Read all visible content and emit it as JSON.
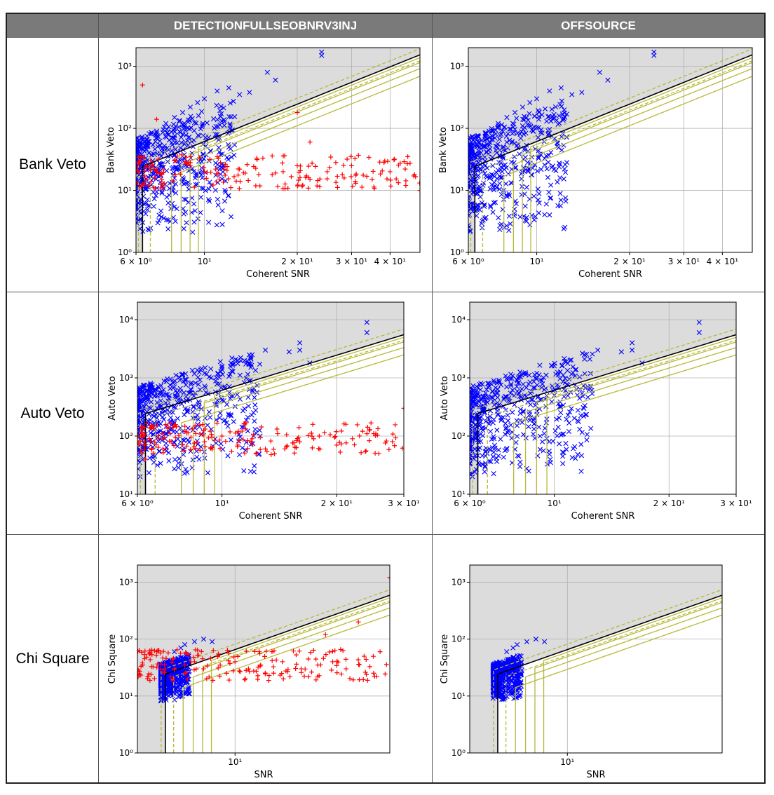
{
  "columns": [
    "DETECTIONFULLSEOBNRV3INJ",
    "OFFSOURCE"
  ],
  "rows": [
    "Bank Veto",
    "Auto Veto",
    "Chi Square"
  ],
  "colors": {
    "background_region": "#dcdcdc",
    "signal_marker": "#ff0000",
    "background_marker": "#0000ff",
    "threshold_solid": "#000000",
    "threshold_lines": "#b8b83a",
    "header_fill": "#7a7a7a"
  },
  "chart_data": [
    {
      "type": "scatter",
      "row": "Bank Veto",
      "column": "DETECTIONFULLSEOBNRV3INJ",
      "xlabel": "Coherent SNR",
      "ylabel": "Bank Veto",
      "xscale": "log",
      "yscale": "log",
      "xlim": [
        6,
        50
      ],
      "ylim": [
        1,
        2000
      ],
      "xticks": [
        "6 × 10⁰",
        "10¹",
        "2 × 10¹",
        "3 × 10¹",
        "4 × 10¹"
      ],
      "xtick_values": [
        6,
        10,
        20,
        30,
        40
      ],
      "yticks": [
        "10⁰",
        "10¹",
        "10²",
        "10³"
      ],
      "ytick_values": [
        1,
        10,
        100,
        1000
      ],
      "grid": true,
      "show_injections": true,
      "series": [
        {
          "kind": "background",
          "marker": "x",
          "points": [
            [
              6.2,
              40
            ],
            [
              6.5,
              60
            ],
            [
              7,
              90
            ],
            [
              7.5,
              120
            ],
            [
              8,
              150
            ],
            [
              9,
              220
            ],
            [
              10,
              300
            ],
            [
              11,
              400
            ],
            [
              12,
              450
            ],
            [
              9.5,
              260
            ],
            [
              8.5,
              180
            ],
            [
              13,
              350
            ],
            [
              14,
              380
            ],
            [
              16,
              800
            ],
            [
              17,
              600
            ],
            [
              24,
              1700
            ],
            [
              24,
              1500
            ],
            [
              6.1,
              5
            ],
            [
              6.3,
              15
            ],
            [
              6.8,
              30
            ],
            [
              7.2,
              25
            ]
          ]
        },
        {
          "kind": "injection",
          "marker": "+",
          "points": [
            [
              6.2,
              30
            ],
            [
              6.5,
              25
            ],
            [
              7,
              20
            ],
            [
              8,
              30
            ],
            [
              9,
              25
            ],
            [
              10,
              20
            ],
            [
              11,
              35
            ],
            [
              13,
              22
            ],
            [
              15,
              18
            ],
            [
              18,
              20
            ],
            [
              20,
              25
            ],
            [
              22,
              15
            ],
            [
              25,
              20
            ],
            [
              28,
              18
            ],
            [
              30,
              25
            ],
            [
              35,
              15
            ],
            [
              40,
              20
            ],
            [
              45,
              12
            ],
            [
              48,
              18
            ],
            [
              50,
              10
            ],
            [
              6.3,
              500
            ],
            [
              20,
              180
            ],
            [
              22,
              60
            ],
            [
              7,
              140
            ]
          ]
        }
      ]
    },
    {
      "type": "scatter",
      "row": "Bank Veto",
      "column": "OFFSOURCE",
      "xlabel": "Coherent SNR",
      "ylabel": "Bank Veto",
      "xscale": "log",
      "yscale": "log",
      "xlim": [
        6,
        50
      ],
      "ylim": [
        1,
        2000
      ],
      "xticks": [
        "6 × 10⁰",
        "10¹",
        "2 × 10¹",
        "3 × 10¹",
        "4 × 10¹"
      ],
      "xtick_values": [
        6,
        10,
        20,
        30,
        40
      ],
      "yticks": [
        "10⁰",
        "10¹",
        "10²",
        "10³"
      ],
      "ytick_values": [
        1,
        10,
        100,
        1000
      ],
      "grid": true,
      "show_injections": false,
      "series": [
        {
          "kind": "background",
          "marker": "x",
          "points": [
            [
              6.2,
              40
            ],
            [
              6.5,
              60
            ],
            [
              7,
              90
            ],
            [
              7.5,
              120
            ],
            [
              8,
              150
            ],
            [
              9,
              220
            ],
            [
              10,
              300
            ],
            [
              11,
              400
            ],
            [
              12,
              450
            ],
            [
              9.5,
              260
            ],
            [
              8.5,
              180
            ],
            [
              13,
              350
            ],
            [
              14,
              380
            ],
            [
              16,
              800
            ],
            [
              17,
              600
            ],
            [
              24,
              1700
            ],
            [
              24,
              1500
            ],
            [
              6.1,
              5
            ],
            [
              6.3,
              15
            ],
            [
              6.8,
              30
            ],
            [
              7.2,
              25
            ]
          ]
        }
      ]
    },
    {
      "type": "scatter",
      "row": "Auto Veto",
      "column": "DETECTIONFULLSEOBNRV3INJ",
      "xlabel": "Coherent SNR",
      "ylabel": "Auto Veto",
      "xscale": "log",
      "yscale": "log",
      "xlim": [
        6,
        30
      ],
      "ylim": [
        10,
        20000
      ],
      "xticks": [
        "6 × 10⁰",
        "10¹",
        "2 × 10¹",
        "3 × 10¹"
      ],
      "xtick_values": [
        6,
        10,
        20,
        30
      ],
      "yticks": [
        "10¹",
        "10²",
        "10³",
        "10⁴"
      ],
      "ytick_values": [
        10,
        100,
        1000,
        10000
      ],
      "grid": true,
      "show_injections": true,
      "series": [
        {
          "kind": "background",
          "marker": "x",
          "points": [
            [
              6.2,
              200
            ],
            [
              6.5,
              300
            ],
            [
              7,
              500
            ],
            [
              7.5,
              700
            ],
            [
              8,
              900
            ],
            [
              9,
              1200
            ],
            [
              10,
              1600
            ],
            [
              11,
              2000
            ],
            [
              12,
              2500
            ],
            [
              13,
              3000
            ],
            [
              16,
              4000
            ],
            [
              16,
              3000
            ],
            [
              17,
              1800
            ],
            [
              24,
              9000
            ],
            [
              24,
              6000
            ],
            [
              6.1,
              20
            ],
            [
              6.3,
              60
            ],
            [
              6.8,
              120
            ],
            [
              15,
              2800
            ]
          ]
        },
        {
          "kind": "injection",
          "marker": "+",
          "points": [
            [
              6.2,
              100
            ],
            [
              6.5,
              80
            ],
            [
              7,
              90
            ],
            [
              8,
              120
            ],
            [
              9,
              80
            ],
            [
              10,
              100
            ],
            [
              11,
              70
            ],
            [
              12,
              90
            ],
            [
              14,
              110
            ],
            [
              16,
              80
            ],
            [
              18,
              100
            ],
            [
              20,
              70
            ],
            [
              22,
              90
            ],
            [
              25,
              110
            ],
            [
              28,
              80
            ],
            [
              30,
              300
            ],
            [
              6.3,
              40
            ],
            [
              7,
              60
            ],
            [
              8.5,
              150
            ],
            [
              13,
              60
            ]
          ]
        }
      ]
    },
    {
      "type": "scatter",
      "row": "Auto Veto",
      "column": "OFFSOURCE",
      "xlabel": "Coherent SNR",
      "ylabel": "Auto Veto",
      "xscale": "log",
      "yscale": "log",
      "xlim": [
        6,
        30
      ],
      "ylim": [
        10,
        20000
      ],
      "xticks": [
        "6 × 10⁰",
        "10¹",
        "2 × 10¹",
        "3 × 10¹"
      ],
      "xtick_values": [
        6,
        10,
        20,
        30
      ],
      "yticks": [
        "10¹",
        "10²",
        "10³",
        "10⁴"
      ],
      "ytick_values": [
        10,
        100,
        1000,
        10000
      ],
      "grid": true,
      "show_injections": false,
      "series": [
        {
          "kind": "background",
          "marker": "x",
          "points": [
            [
              6.2,
              200
            ],
            [
              6.5,
              300
            ],
            [
              7,
              500
            ],
            [
              7.5,
              700
            ],
            [
              8,
              900
            ],
            [
              9,
              1200
            ],
            [
              10,
              1600
            ],
            [
              11,
              2000
            ],
            [
              12,
              2500
            ],
            [
              13,
              3000
            ],
            [
              16,
              4000
            ],
            [
              16,
              3000
            ],
            [
              17,
              1800
            ],
            [
              24,
              9000
            ],
            [
              24,
              6000
            ],
            [
              6.1,
              20
            ],
            [
              6.3,
              60
            ],
            [
              6.8,
              120
            ],
            [
              15,
              2800
            ]
          ]
        }
      ]
    },
    {
      "type": "scatter",
      "row": "Chi Square",
      "column": "DETECTIONFULLSEOBNRV3INJ",
      "xlabel": "SNR",
      "ylabel": "Chi Square",
      "xscale": "log",
      "yscale": "log",
      "xlim": [
        5,
        30
      ],
      "ylim": [
        1,
        2000
      ],
      "xticks": [
        "10¹"
      ],
      "xtick_values": [
        10
      ],
      "yticks": [
        "10⁰",
        "10¹",
        "10²",
        "10³"
      ],
      "ytick_values": [
        1,
        10,
        100,
        1000
      ],
      "grid": true,
      "show_injections": true,
      "series": [
        {
          "kind": "background",
          "marker": "x",
          "points": [
            [
              6,
              20
            ],
            [
              6.2,
              40
            ],
            [
              6.5,
              60
            ],
            [
              7,
              80
            ],
            [
              7.5,
              90
            ],
            [
              8,
              100
            ],
            [
              8.5,
              90
            ],
            [
              6.1,
              12
            ],
            [
              6.3,
              30
            ],
            [
              6.8,
              70
            ],
            [
              7.2,
              50
            ]
          ]
        },
        {
          "kind": "injection",
          "marker": "+",
          "points": [
            [
              6.5,
              30
            ],
            [
              7,
              35
            ],
            [
              7.5,
              40
            ],
            [
              8,
              30
            ],
            [
              9,
              35
            ],
            [
              10,
              40
            ],
            [
              11,
              30
            ],
            [
              12,
              35
            ],
            [
              14,
              40
            ],
            [
              16,
              30
            ],
            [
              18,
              35
            ],
            [
              20,
              40
            ],
            [
              22,
              30
            ],
            [
              25,
              50
            ],
            [
              28,
              60
            ],
            [
              30,
              1200
            ],
            [
              13,
              60
            ],
            [
              19,
              120
            ],
            [
              24,
              200
            ]
          ]
        }
      ]
    },
    {
      "type": "scatter",
      "row": "Chi Square",
      "column": "OFFSOURCE",
      "xlabel": "SNR",
      "ylabel": "Chi Square",
      "xscale": "log",
      "yscale": "log",
      "xlim": [
        5,
        30
      ],
      "ylim": [
        1,
        2000
      ],
      "xticks": [
        "10¹"
      ],
      "xtick_values": [
        10
      ],
      "yticks": [
        "10⁰",
        "10¹",
        "10²",
        "10³"
      ],
      "ytick_values": [
        1,
        10,
        100,
        1000
      ],
      "grid": true,
      "show_injections": false,
      "series": [
        {
          "kind": "background",
          "marker": "x",
          "points": [
            [
              6,
              20
            ],
            [
              6.2,
              40
            ],
            [
              6.5,
              60
            ],
            [
              7,
              80
            ],
            [
              7.5,
              90
            ],
            [
              8,
              100
            ],
            [
              8.5,
              90
            ],
            [
              6.1,
              12
            ],
            [
              6.3,
              30
            ],
            [
              6.8,
              70
            ],
            [
              7.2,
              50
            ]
          ]
        }
      ]
    }
  ]
}
